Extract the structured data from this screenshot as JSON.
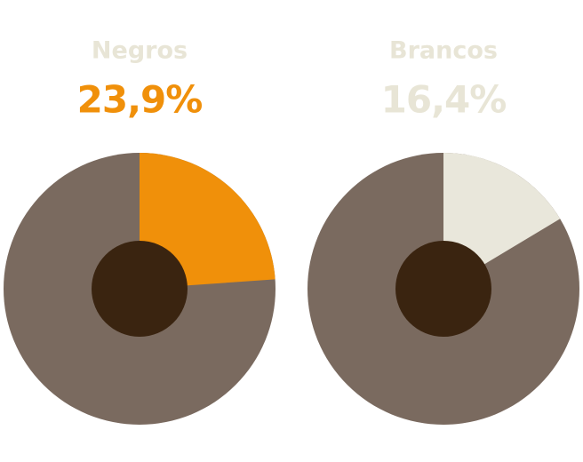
{
  "chart_data": [
    {
      "type": "pie",
      "title": "Negros",
      "values": [
        23.9
      ],
      "value_labels": [
        "23,9%"
      ],
      "color": "#f0900a",
      "title_color": "#e8e5d6",
      "label_color": "#f0900a",
      "track_color": "#7a6a5f",
      "hole_color": "#3a2410"
    },
    {
      "type": "pie",
      "title": "Brancos",
      "values": [
        16.4
      ],
      "value_labels": [
        "16,4%"
      ],
      "color": "#e9e7db",
      "title_color": "#e8e5d6",
      "label_color": "#e8e5d6",
      "track_color": "#7a6a5f",
      "hole_color": "#3a2410"
    }
  ]
}
